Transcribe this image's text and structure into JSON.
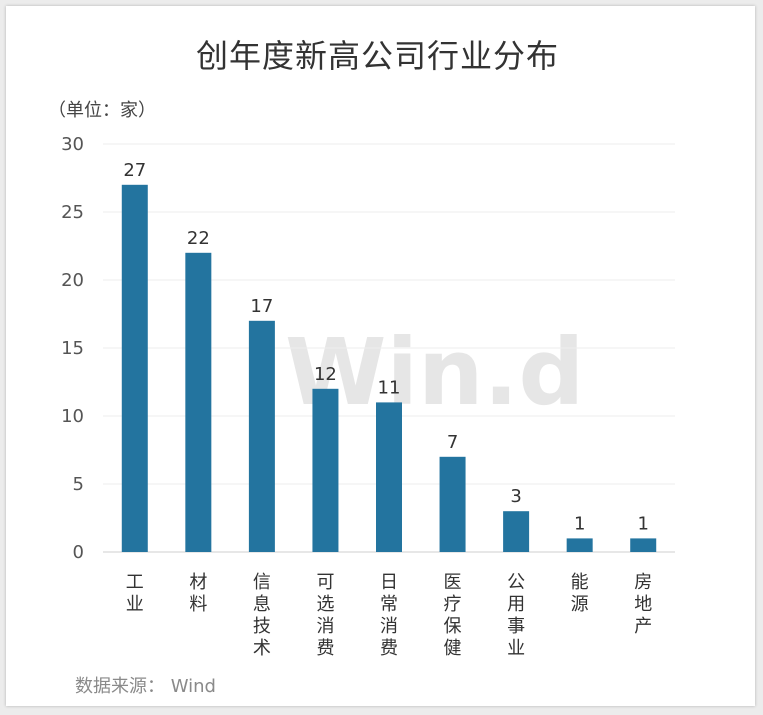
{
  "title": "创年度新高公司行业分布",
  "unit_label": "（单位：家）",
  "source": "数据来源： Wind",
  "watermark": "Win.d",
  "chart_data": {
    "type": "bar",
    "categories": [
      "工业",
      "材料",
      "信息技术",
      "可选消费",
      "日常消费",
      "医疗保健",
      "公用事业",
      "能源",
      "房地产"
    ],
    "values": [
      27,
      22,
      17,
      12,
      11,
      7,
      3,
      1,
      1
    ],
    "ylim": [
      0,
      30
    ],
    "yticks": [
      0,
      5,
      10,
      15,
      20,
      25,
      30
    ],
    "grid": true,
    "bar_color": "#23749f",
    "legend": "none"
  }
}
